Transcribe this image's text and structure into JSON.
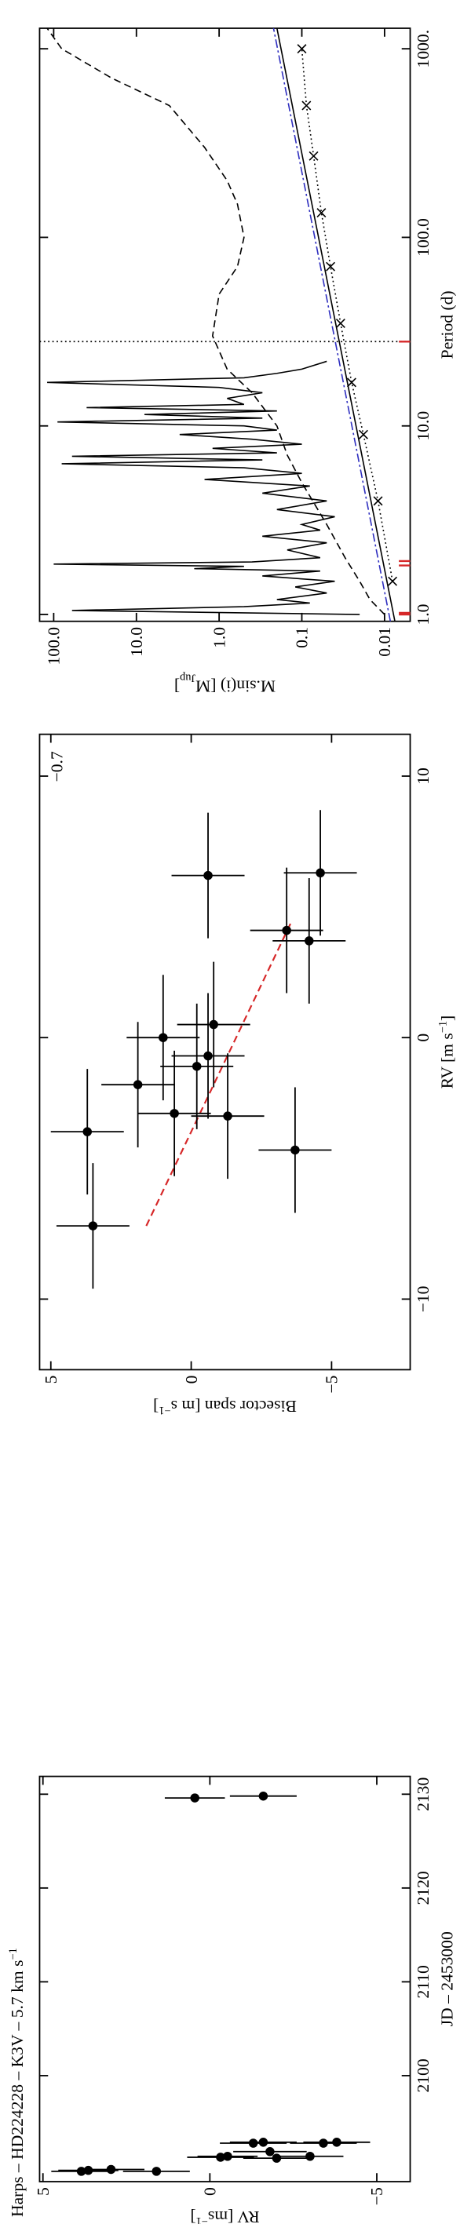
{
  "chart_data": [
    {
      "type": "errorbar",
      "title": {
        "text": "Harps – HD224228 – K3V – 5.7 km s",
        "sup": "−1"
      },
      "xlabel": "JD – 2453000",
      "ylabel": {
        "text": "RV [ms",
        "sup": "−1",
        "end": "]"
      },
      "x": [
        2089.8,
        2089.9,
        2090.0,
        2089.8,
        2091.3,
        2091.4,
        2092.8,
        2092.9,
        2091.9,
        2091.2,
        2091.4,
        2092.8,
        2092.9,
        2129.6,
        2129.8
      ],
      "values": [
        3.85,
        3.64,
        2.96,
        1.6,
        -0.32,
        -0.53,
        -1.3,
        -1.6,
        -1.8,
        -2.0,
        -3.0,
        -3.4,
        -3.8,
        0.45,
        -1.6
      ],
      "errors": [
        0.9,
        0.9,
        1.0,
        1.0,
        1.0,
        0.9,
        1.0,
        1.0,
        1.1,
        1.0,
        1.0,
        1.0,
        1.0,
        0.9,
        1.0
      ],
      "color": "#000000",
      "xlim": [
        2088.7,
        2131.9
      ],
      "ylim": [
        -6.0,
        5.1
      ],
      "xticks": [
        2100,
        2110,
        2120,
        2130
      ],
      "yticks": [
        {
          "value": -5,
          "label": "−5"
        },
        0,
        5
      ]
    },
    {
      "type": "scatter",
      "xlabel": {
        "text": "RV [m s",
        "sup": "−1",
        "end": "]"
      },
      "ylabel": {
        "text": "Bisector span [m s",
        "sup": "−1",
        "end": "]"
      },
      "annotation": "−0.7",
      "x": [
        -7.2,
        -3.6,
        -1.8,
        -2.9,
        0.0,
        -1.1,
        -3.0,
        -0.7,
        0.5,
        -4.3,
        4.1,
        3.7,
        6.2,
        6.3
      ],
      "values": [
        3.5,
        3.7,
        1.9,
        0.6,
        1.0,
        -0.2,
        -1.3,
        -0.6,
        -0.8,
        -3.7,
        -3.4,
        -4.2,
        -0.6,
        -4.6
      ],
      "x_errors": [
        2.4,
        2.4,
        2.4,
        2.4,
        2.4,
        2.4,
        2.4,
        2.4,
        2.4,
        2.4,
        2.4,
        2.4,
        2.4,
        2.4
      ],
      "errors": [
        1.3,
        1.3,
        1.3,
        1.3,
        1.3,
        1.3,
        1.3,
        1.3,
        1.3,
        1.3,
        1.3,
        1.3,
        1.3,
        1.3
      ],
      "color": "#000000",
      "fit": {
        "x": [
          -7.2,
          4.5
        ],
        "values": [
          1.6,
          -3.6
        ],
        "color": "#d62728"
      },
      "xlim": [
        -12.7,
        11.6
      ],
      "ylim": [
        -7.8,
        5.4
      ],
      "xticks": [
        {
          "value": -10,
          "label": "−10"
        },
        0,
        10
      ],
      "yticks": [
        {
          "value": -5,
          "label": "−5"
        },
        0,
        5
      ]
    },
    {
      "type": "line",
      "xlabel": "Period (d)",
      "ylabel": {
        "text": "M.sin(i) [M",
        "sub": "Jup",
        "end": "]"
      },
      "xlog": true,
      "ylog": true,
      "series": [
        {
          "color": "#000000",
          "dash": "solid",
          "x": [
            1.0,
            1.05,
            1.1,
            1.15,
            1.2,
            1.3,
            1.4,
            1.5,
            1.6,
            1.7,
            1.75,
            1.8,
            1.85,
            1.9,
            2.0,
            2.2,
            2.4,
            2.6,
            2.8,
            3.0,
            3.3,
            3.6,
            4.0,
            4.4,
            4.8,
            5.2,
            5.6,
            6.0,
            6.3,
            6.6,
            6.9,
            7.2,
            7.6,
            8.0,
            8.5,
            9.0,
            9.5,
            10,
            10.5,
            11,
            11.5,
            12,
            12.5,
            13,
            14,
            15,
            16,
            17,
            18,
            19,
            20,
            22
          ],
          "values": [
            0.02,
            60,
            0.5,
            0.08,
            0.2,
            0.05,
            0.12,
            0.04,
            0.3,
            0.06,
            2,
            0.5,
            100,
            0.4,
            0.06,
            0.15,
            0.05,
            0.3,
            0.06,
            0.1,
            0.04,
            0.2,
            0.05,
            0.3,
            0.08,
            1.5,
            0.1,
            0.5,
            80,
            0.3,
            60,
            0.2,
            1.2,
            0.1,
            0.4,
            3,
            0.2,
            0.5,
            90,
            0.3,
            8,
            0.2,
            40,
            0.5,
            0.8,
            0.3,
            1.0,
            120,
            0.5,
            0.2,
            0.1,
            0.05
          ]
        },
        {
          "color": "#000000",
          "dash": "dashed",
          "x": [
            1.0,
            1.2,
            1.5,
            2,
            3,
            5,
            7,
            10,
            15,
            20,
            30,
            50,
            70,
            100,
            150,
            200,
            300,
            500,
            700,
            1000,
            1285
          ],
          "values": [
            0.01,
            0.015,
            0.02,
            0.03,
            0.05,
            0.1,
            0.15,
            0.2,
            0.4,
            0.8,
            1.2,
            1.0,
            0.6,
            0.5,
            0.6,
            0.8,
            1.5,
            4,
            20,
            80,
            120
          ]
        },
        {
          "color": "#3030c0",
          "dash": "dashdot",
          "x": [
            0.92,
            1285
          ],
          "values": [
            0.0085,
            0.22
          ]
        },
        {
          "color": "#000000",
          "dash": "solid",
          "x": [
            0.92,
            1285
          ],
          "values": [
            0.0075,
            0.2
          ]
        },
        {
          "color": "#000000",
          "dash": "dotted",
          "marker": "x",
          "x": [
            1.5,
            4,
            9,
            17,
            35,
            70,
            135,
            270,
            500,
            1000
          ],
          "values": [
            0.008,
            0.012,
            0.018,
            0.025,
            0.034,
            0.045,
            0.058,
            0.072,
            0.088,
            0.1
          ]
        }
      ],
      "vline": 28,
      "marked_periods": [
        1.0,
        1.02,
        1.82,
        1.92,
        28
      ],
      "mark_color": "#d62728",
      "xlim": [
        0.92,
        1285
      ],
      "ylim": [
        0.0049,
        148
      ],
      "xticks": [
        {
          "value": 1,
          "label": "1.0"
        },
        {
          "value": 10,
          "label": "10.0"
        },
        {
          "value": 100,
          "label": "100.0"
        },
        {
          "value": 1000,
          "label": "1000."
        }
      ],
      "yticks": [
        0.01,
        0.1,
        {
          "value": 1,
          "label": "1.0"
        },
        {
          "value": 10,
          "label": "10.0"
        },
        {
          "value": 100,
          "label": "100.0"
        }
      ]
    }
  ]
}
